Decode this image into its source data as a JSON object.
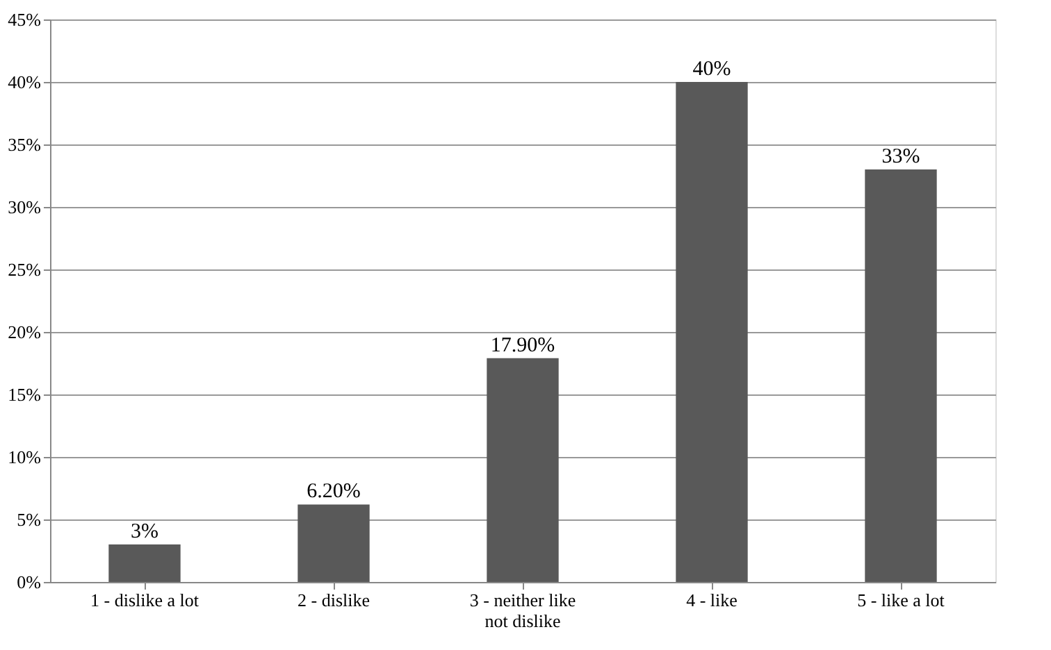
{
  "chart_data": {
    "type": "bar",
    "categories": [
      "1 - dislike a lot",
      "2 - dislike",
      "3 - neither like not dislike",
      "4 - like",
      "5 - like a lot"
    ],
    "values": [
      3,
      6.2,
      17.9,
      40,
      33
    ],
    "value_labels": [
      "3%",
      "6.20%",
      "17.90%",
      "40%",
      "33%"
    ],
    "color": "#595959",
    "ylim": [
      0,
      45
    ],
    "yticks": [
      {
        "value": 0,
        "label": "0%"
      },
      {
        "value": 5,
        "label": "5%"
      },
      {
        "value": 10,
        "label": "10%"
      },
      {
        "value": 15,
        "label": "15%"
      },
      {
        "value": 20,
        "label": "20%"
      },
      {
        "value": 25,
        "label": "25%"
      },
      {
        "value": 30,
        "label": "30%"
      },
      {
        "value": 35,
        "label": "35%"
      },
      {
        "value": 40,
        "label": "40%"
      },
      {
        "value": 45,
        "label": "45%"
      }
    ],
    "grid": "y"
  }
}
